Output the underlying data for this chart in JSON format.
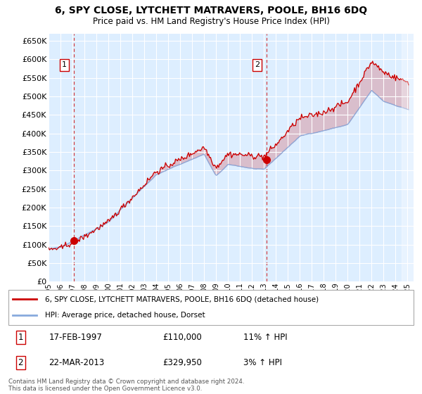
{
  "title": "6, SPY CLOSE, LYTCHETT MATRAVERS, POOLE, BH16 6DQ",
  "subtitle": "Price paid vs. HM Land Registry's House Price Index (HPI)",
  "legend_line1": "6, SPY CLOSE, LYTCHETT MATRAVERS, POOLE, BH16 6DQ (detached house)",
  "legend_line2": "HPI: Average price, detached house, Dorset",
  "annotation1_date": "17-FEB-1997",
  "annotation1_price": "£110,000",
  "annotation1_hpi": "11% ↑ HPI",
  "annotation2_date": "22-MAR-2013",
  "annotation2_price": "£329,950",
  "annotation2_hpi": "3% ↑ HPI",
  "footnote": "Contains HM Land Registry data © Crown copyright and database right 2024.\nThis data is licensed under the Open Government Licence v3.0.",
  "line_color_property": "#cc0000",
  "line_color_hpi": "#88aadd",
  "plot_bg_color": "#ddeeff",
  "sale1_year": 1997.12,
  "sale1_value": 110000,
  "sale2_year": 2013.22,
  "sale2_value": 329950,
  "ylim_max": 650000,
  "xmin": 1995,
  "xmax": 2025.5
}
